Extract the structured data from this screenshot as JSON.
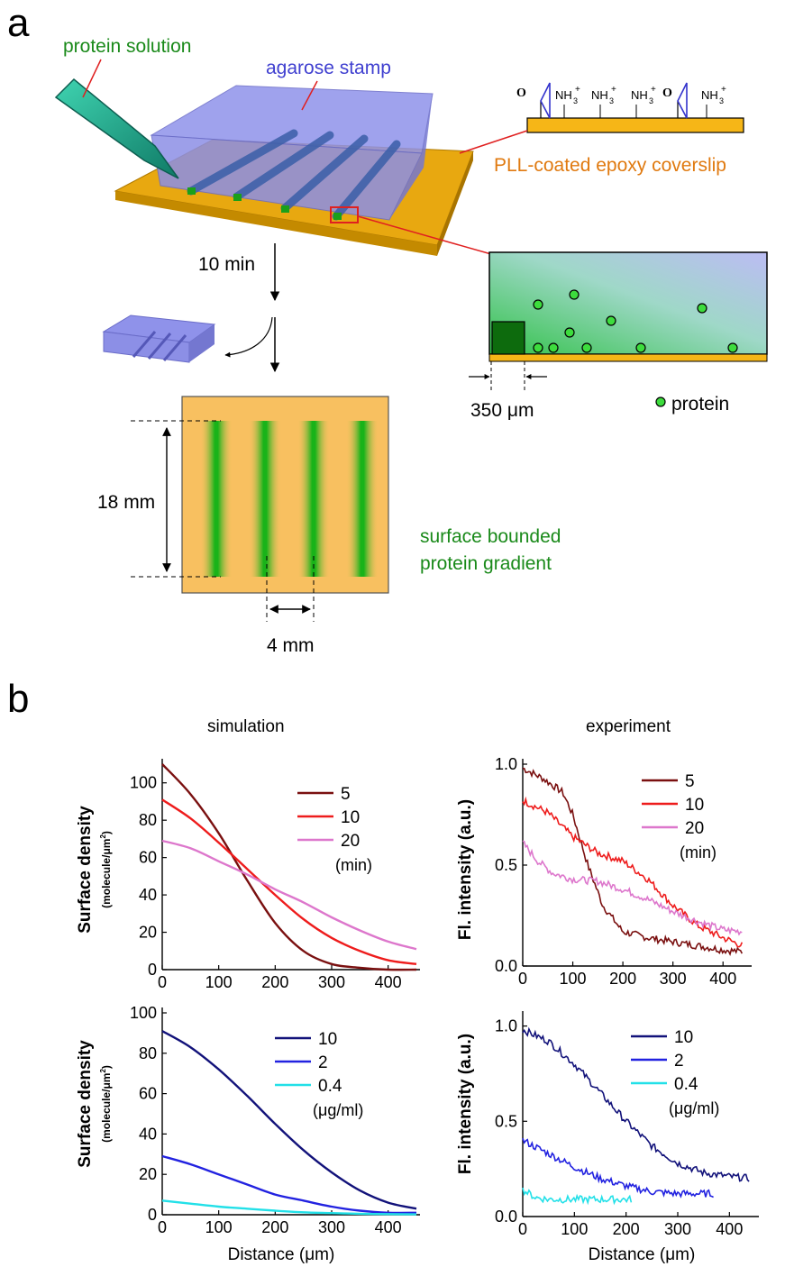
{
  "panel_a": {
    "panel_letter": "a",
    "protein_solution_label": "protein solution",
    "agarose_stamp_label": "agarose stamp",
    "coverslip_label": "PLL-coated epoxy coverslip",
    "chem_o": "O",
    "chem_nh3": "NH",
    "chem_sub": "3",
    "chem_sup": "+",
    "time_label": "10 min",
    "scale_label": "350 μm",
    "protein_legend": "protein",
    "height_label": "18 mm",
    "spacing_label": "4 mm",
    "gradient_label_line1": "surface bounded",
    "gradient_label_line2": "protein gradient",
    "colors": {
      "coverslip": "#f2b010",
      "stamp": "#8a8ce6",
      "protein_green": "#22c022",
      "pipette": "#1aa38a",
      "red_callout": "#e02020",
      "text_green": "#1a8a1a",
      "text_blue": "#4040d0",
      "text_orange": "#e07a10"
    }
  },
  "panel_b": {
    "panel_letter": "b",
    "simulation_title": "simulation",
    "experiment_title": "experiment",
    "sim_ylabel": "Surface density",
    "sim_yunit_prefix": "(molecule/μm",
    "sim_yunit_sup": "2",
    "sim_yunit_suffix": ")",
    "exp_ylabel": "Fl. intensity (a.u.)",
    "xlabel": "Distance (μm)"
  },
  "chart_data": [
    {
      "type": "line",
      "panel": "simulation-time",
      "xlim": [
        0,
        450
      ],
      "ylim": [
        0,
        110
      ],
      "xticks": [
        0,
        100,
        200,
        300,
        400
      ],
      "yticks": [
        0,
        20,
        40,
        60,
        80,
        100
      ],
      "legend_unit": "(min)",
      "series": [
        {
          "name": "5",
          "color": "#7a1010",
          "x": [
            0,
            50,
            100,
            150,
            200,
            250,
            300,
            350,
            400,
            450
          ],
          "y": [
            110,
            94,
            73,
            48,
            25,
            10,
            3,
            1,
            0,
            0
          ]
        },
        {
          "name": "10",
          "color": "#ee1c1c",
          "x": [
            0,
            50,
            100,
            150,
            200,
            250,
            300,
            350,
            400,
            450
          ],
          "y": [
            91,
            81,
            68,
            54,
            40,
            27,
            17,
            10,
            5,
            3
          ]
        },
        {
          "name": "20",
          "color": "#dd77cc",
          "x": [
            0,
            50,
            100,
            150,
            200,
            250,
            300,
            350,
            400,
            450
          ],
          "y": [
            69,
            65,
            58,
            51,
            43,
            36,
            28,
            21,
            15,
            11
          ]
        }
      ]
    },
    {
      "type": "line",
      "panel": "experiment-time",
      "xlim": [
        0,
        450
      ],
      "ylim": [
        0,
        1.0
      ],
      "xticks": [
        0,
        100,
        200,
        300,
        400
      ],
      "yticks": [
        0.0,
        0.5,
        1.0
      ],
      "legend_unit": "(min)",
      "series": [
        {
          "name": "5",
          "color": "#7a1010",
          "x": [
            0,
            40,
            80,
            100,
            130,
            160,
            200,
            250,
            300,
            350,
            400,
            440
          ],
          "y": [
            0.98,
            0.93,
            0.86,
            0.75,
            0.5,
            0.3,
            0.17,
            0.14,
            0.12,
            0.1,
            0.08,
            0.07
          ]
        },
        {
          "name": "10",
          "color": "#ee1c1c",
          "x": [
            0,
            50,
            100,
            150,
            200,
            250,
            300,
            350,
            400,
            440
          ],
          "y": [
            0.82,
            0.76,
            0.64,
            0.56,
            0.52,
            0.43,
            0.3,
            0.2,
            0.14,
            0.1
          ]
        },
        {
          "name": "20",
          "color": "#dd77cc",
          "x": [
            0,
            30,
            60,
            100,
            150,
            200,
            250,
            300,
            350,
            400,
            440
          ],
          "y": [
            0.61,
            0.52,
            0.46,
            0.43,
            0.42,
            0.38,
            0.33,
            0.27,
            0.22,
            0.18,
            0.17
          ]
        }
      ]
    },
    {
      "type": "line",
      "panel": "simulation-concentration",
      "xlim": [
        0,
        450
      ],
      "ylim": [
        0,
        100
      ],
      "xticks": [
        0,
        100,
        200,
        300,
        400
      ],
      "xticklabels": [
        "0",
        "100",
        "200",
        "300",
        "400"
      ],
      "yticks": [
        0,
        20,
        40,
        60,
        80,
        100
      ],
      "legend_unit": "(μg/ml)",
      "series": [
        {
          "name": "10",
          "color": "#12127a",
          "x": [
            0,
            50,
            100,
            150,
            200,
            250,
            300,
            350,
            400,
            450
          ],
          "y": [
            91,
            83,
            72,
            59,
            45,
            32,
            21,
            12,
            6,
            3
          ]
        },
        {
          "name": "2",
          "color": "#2222e0",
          "x": [
            0,
            50,
            100,
            150,
            200,
            250,
            300,
            350,
            400,
            450
          ],
          "y": [
            29,
            25,
            20,
            15,
            10,
            7,
            4,
            2,
            1,
            1
          ]
        },
        {
          "name": "0.4",
          "color": "#22e0e8",
          "x": [
            0,
            50,
            100,
            150,
            200,
            250,
            300,
            350,
            400,
            450
          ],
          "y": [
            7,
            5.5,
            4,
            3,
            2,
            1.2,
            0.8,
            0.5,
            0.3,
            0.2
          ]
        }
      ]
    },
    {
      "type": "line",
      "panel": "experiment-concentration",
      "xlim": [
        0,
        450
      ],
      "ylim": [
        0,
        1.05
      ],
      "xticks": [
        0,
        100,
        200,
        300,
        400
      ],
      "yticks": [
        0.0,
        0.5,
        1.0
      ],
      "legend_unit": "(μg/ml)",
      "series": [
        {
          "name": "10",
          "color": "#12127a",
          "x": [
            0,
            50,
            100,
            150,
            200,
            250,
            300,
            350,
            400,
            440
          ],
          "y": [
            0.98,
            0.92,
            0.8,
            0.65,
            0.5,
            0.37,
            0.28,
            0.23,
            0.21,
            0.2
          ]
        },
        {
          "name": "2",
          "color": "#2222e0",
          "x": [
            0,
            50,
            100,
            150,
            200,
            250,
            300,
            370
          ],
          "y": [
            0.4,
            0.33,
            0.26,
            0.2,
            0.16,
            0.13,
            0.12,
            0.12
          ]
        },
        {
          "name": "0.4",
          "color": "#22e0e8",
          "x": [
            0,
            25,
            50,
            100,
            150,
            210
          ],
          "y": [
            0.14,
            0.1,
            0.09,
            0.09,
            0.09,
            0.09
          ]
        }
      ]
    }
  ]
}
